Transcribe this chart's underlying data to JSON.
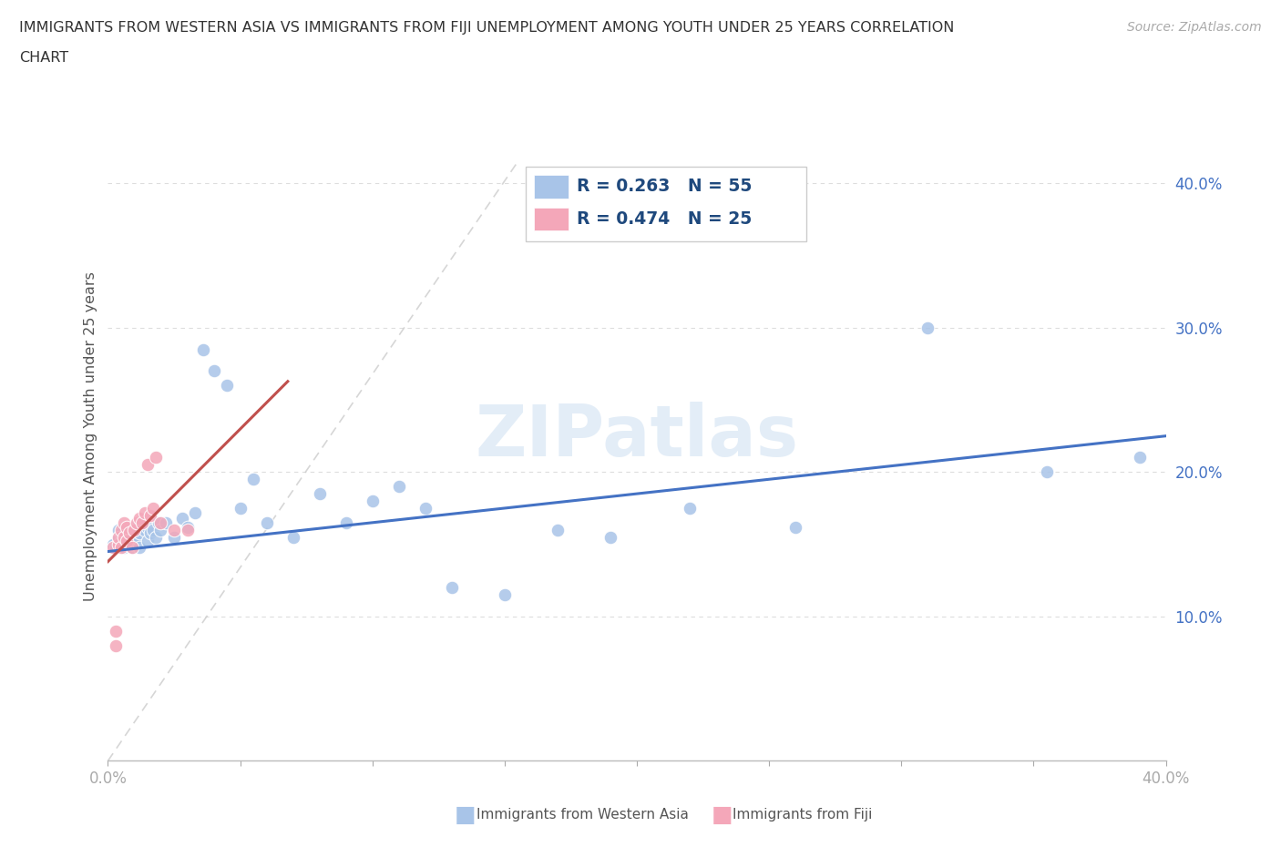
{
  "title_line1": "IMMIGRANTS FROM WESTERN ASIA VS IMMIGRANTS FROM FIJI UNEMPLOYMENT AMONG YOUTH UNDER 25 YEARS CORRELATION",
  "title_line2": "CHART",
  "source_text": "Source: ZipAtlas.com",
  "ylabel": "Unemployment Among Youth under 25 years",
  "xmin": 0.0,
  "xmax": 0.4,
  "ymin": 0.0,
  "ymax": 0.45,
  "yticks": [
    0.1,
    0.2,
    0.3,
    0.4
  ],
  "ytick_labels": [
    "10.0%",
    "20.0%",
    "30.0%",
    "40.0%"
  ],
  "xticks": [
    0.0,
    0.05,
    0.1,
    0.15,
    0.2,
    0.25,
    0.3,
    0.35,
    0.4
  ],
  "xtick_labels": [
    "0.0%",
    "",
    "",
    "",
    "",
    "",
    "",
    "",
    "40.0%"
  ],
  "western_asia_color": "#A8C4E8",
  "fiji_color": "#F4A7B9",
  "trend_western_asia_color": "#4472C4",
  "trend_fiji_color": "#C0504D",
  "diag_color": "#CCCCCC",
  "R_western_asia": 0.263,
  "N_western_asia": 55,
  "R_fiji": 0.474,
  "N_fiji": 25,
  "legend_label_western": "Immigrants from Western Asia",
  "legend_label_fiji": "Immigrants from Fiji",
  "watermark": "ZIPatlas",
  "wa_x": [
    0.002,
    0.003,
    0.004,
    0.004,
    0.005,
    0.005,
    0.006,
    0.006,
    0.007,
    0.007,
    0.008,
    0.008,
    0.009,
    0.009,
    0.01,
    0.01,
    0.011,
    0.011,
    0.012,
    0.012,
    0.013,
    0.014,
    0.015,
    0.015,
    0.016,
    0.017,
    0.018,
    0.019,
    0.02,
    0.022,
    0.025,
    0.028,
    0.03,
    0.033,
    0.036,
    0.04,
    0.045,
    0.05,
    0.055,
    0.06,
    0.07,
    0.08,
    0.09,
    0.1,
    0.11,
    0.12,
    0.13,
    0.15,
    0.17,
    0.19,
    0.22,
    0.26,
    0.31,
    0.355,
    0.39
  ],
  "wa_y": [
    0.15,
    0.148,
    0.155,
    0.16,
    0.152,
    0.158,
    0.148,
    0.155,
    0.15,
    0.158,
    0.153,
    0.16,
    0.148,
    0.155,
    0.15,
    0.162,
    0.155,
    0.162,
    0.148,
    0.158,
    0.165,
    0.16,
    0.152,
    0.162,
    0.158,
    0.16,
    0.155,
    0.165,
    0.16,
    0.165,
    0.155,
    0.168,
    0.162,
    0.172,
    0.285,
    0.27,
    0.26,
    0.175,
    0.195,
    0.165,
    0.155,
    0.185,
    0.165,
    0.18,
    0.19,
    0.175,
    0.12,
    0.115,
    0.16,
    0.155,
    0.175,
    0.162,
    0.3,
    0.2,
    0.21
  ],
  "fj_x": [
    0.002,
    0.003,
    0.003,
    0.004,
    0.004,
    0.005,
    0.005,
    0.006,
    0.006,
    0.007,
    0.007,
    0.008,
    0.009,
    0.01,
    0.011,
    0.012,
    0.013,
    0.014,
    0.015,
    0.016,
    0.017,
    0.018,
    0.02,
    0.025,
    0.03
  ],
  "fj_y": [
    0.148,
    0.08,
    0.09,
    0.15,
    0.155,
    0.148,
    0.16,
    0.155,
    0.165,
    0.152,
    0.162,
    0.158,
    0.148,
    0.16,
    0.165,
    0.168,
    0.165,
    0.172,
    0.205,
    0.17,
    0.175,
    0.21,
    0.165,
    0.16,
    0.16
  ]
}
